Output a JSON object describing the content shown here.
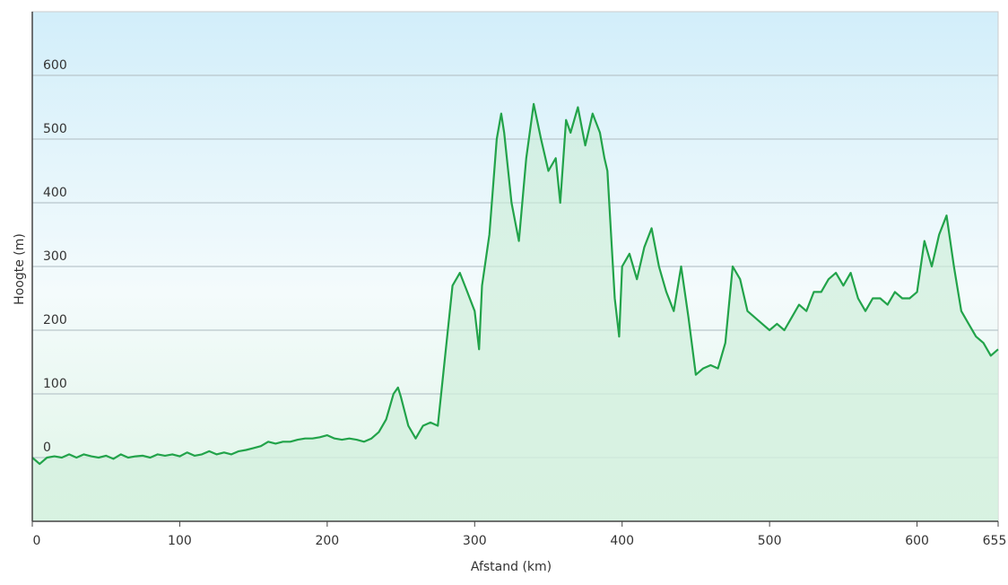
{
  "chart_data": {
    "type": "line",
    "x_label": "Afstand  (km)",
    "y_label": "Hoogte (m)",
    "xlim": [
      0,
      655
    ],
    "xticks": [
      0,
      100,
      200,
      300,
      400,
      500,
      600,
      655
    ],
    "ylim": [
      -100,
      700
    ],
    "yticks": [
      0,
      100,
      200,
      300,
      400,
      500,
      600
    ],
    "grid": true,
    "color": "#22a34a",
    "x": [
      0,
      5,
      10,
      15,
      20,
      25,
      30,
      35,
      40,
      45,
      50,
      55,
      60,
      65,
      70,
      75,
      80,
      85,
      90,
      95,
      100,
      105,
      110,
      115,
      120,
      125,
      130,
      135,
      140,
      145,
      150,
      155,
      160,
      165,
      170,
      175,
      180,
      185,
      190,
      195,
      200,
      205,
      210,
      215,
      220,
      225,
      230,
      235,
      240,
      245,
      248,
      250,
      255,
      260,
      265,
      270,
      275,
      280,
      285,
      290,
      295,
      300,
      303,
      305,
      310,
      315,
      318,
      320,
      325,
      330,
      335,
      340,
      345,
      350,
      355,
      358,
      362,
      365,
      370,
      375,
      380,
      385,
      388,
      390,
      395,
      398,
      400,
      405,
      410,
      415,
      420,
      425,
      430,
      435,
      440,
      445,
      450,
      455,
      460,
      465,
      470,
      475,
      480,
      485,
      490,
      495,
      500,
      505,
      510,
      515,
      520,
      525,
      530,
      535,
      540,
      545,
      550,
      555,
      560,
      565,
      570,
      575,
      580,
      585,
      590,
      595,
      600,
      605,
      610,
      615,
      620,
      625,
      630,
      635,
      640,
      645,
      650,
      655
    ],
    "values": [
      0,
      -10,
      0,
      2,
      0,
      5,
      0,
      5,
      2,
      0,
      3,
      -2,
      5,
      0,
      2,
      3,
      0,
      5,
      3,
      5,
      2,
      8,
      3,
      5,
      10,
      5,
      8,
      5,
      10,
      12,
      15,
      18,
      25,
      22,
      25,
      25,
      28,
      30,
      30,
      32,
      35,
      30,
      28,
      30,
      28,
      25,
      30,
      40,
      60,
      100,
      110,
      95,
      50,
      30,
      50,
      55,
      50,
      160,
      270,
      290,
      260,
      230,
      170,
      270,
      350,
      500,
      540,
      510,
      400,
      340,
      470,
      555,
      500,
      450,
      470,
      400,
      530,
      510,
      550,
      490,
      540,
      510,
      470,
      450,
      250,
      190,
      300,
      320,
      280,
      330,
      360,
      300,
      260,
      230,
      300,
      220,
      130,
      140,
      145,
      140,
      180,
      300,
      280,
      230,
      220,
      210,
      200,
      210,
      200,
      220,
      240,
      230,
      260,
      260,
      280,
      290,
      270,
      290,
      250,
      230,
      250,
      250,
      240,
      260,
      250,
      250,
      260,
      340,
      300,
      350,
      380,
      300,
      230,
      210,
      190,
      180,
      160,
      170
    ]
  }
}
